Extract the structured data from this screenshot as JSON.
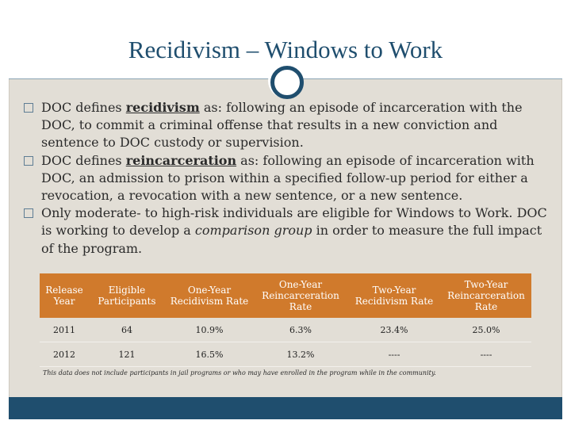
{
  "slide": {
    "title": "Recidivism – Windows to Work"
  },
  "bullets": [
    {
      "before": "DOC defines ",
      "term": "recidivism",
      "after": " as: following an episode of incarceration with the DOC, to commit a criminal offense that results in a new conviction and sentence to DOC custody or supervision."
    },
    {
      "before": "DOC defines ",
      "term": "reincarceration",
      "after": " as: following an episode of incarceration with DOC, an admission to prison within a specified follow-up period for either a revocation, a revocation with a new sentence, or a new sentence."
    },
    {
      "before": "Only moderate- to high-risk individuals are eligible for Windows to Work. DOC is working to develop a ",
      "emph": "comparison group",
      "after": " in order to measure the full impact of the program."
    }
  ],
  "table": {
    "headers": [
      "Release Year",
      "Eligible Participants",
      "One-Year Recidivism Rate",
      "One-Year Reincarceration Rate",
      "Two-Year Recidivism Rate",
      "Two-Year Reincarceration Rate"
    ],
    "rows": [
      [
        "2011",
        "64",
        "10.9%",
        "6.3%",
        "23.4%",
        "25.0%"
      ],
      [
        "2012",
        "121",
        "16.5%",
        "13.2%",
        "----",
        "----"
      ]
    ],
    "note": "This data does not include participants in jail programs or who may have enrolled in the program while in the community."
  },
  "colors": {
    "accent_blue": "#1f4e6e",
    "table_header": "#d07a2c",
    "background": "#e2ded6"
  }
}
